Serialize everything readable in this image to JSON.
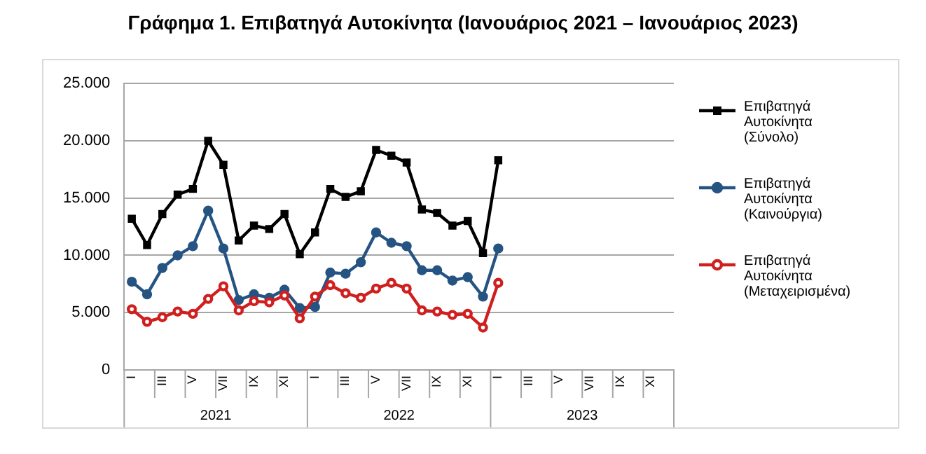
{
  "chart_data": {
    "type": "line",
    "title": "Γράφημα 1. Επιβατηγά Αυτοκίνητα (Ιανουάριος 2021 – Ιανουάριος 2023)",
    "categories": [
      "I",
      null,
      "III",
      null,
      "V",
      null,
      "VII",
      null,
      "IX",
      null,
      "XI",
      null,
      "I",
      null,
      "III",
      null,
      "V",
      null,
      "VII",
      null,
      "IX",
      null,
      "XI",
      null,
      "I",
      null,
      "III",
      null,
      "V",
      null,
      "VII",
      null,
      "IX",
      null,
      "XI",
      null
    ],
    "series": [
      {
        "name": "Επιβατηγά Αυτοκίνητα (Σύνολο)",
        "color": "#000000",
        "marker": "square",
        "values": [
          13200,
          10900,
          13600,
          15300,
          15800,
          20000,
          17900,
          11300,
          12600,
          12300,
          13600,
          10100,
          12000,
          15800,
          15100,
          15600,
          19200,
          18700,
          18100,
          14000,
          13700,
          12600,
          13000,
          10200,
          18300,
          null,
          null,
          null,
          null,
          null,
          null,
          null,
          null,
          null,
          null,
          null
        ]
      },
      {
        "name": "Επιβατηγά Αυτοκίνητα (Καινούργια)",
        "color": "#255483",
        "marker": "circle",
        "values": [
          7700,
          6600,
          8900,
          10000,
          10800,
          13900,
          10600,
          6100,
          6600,
          6300,
          7000,
          5400,
          5500,
          8500,
          8400,
          9400,
          12000,
          11100,
          10800,
          8700,
          8700,
          7800,
          8100,
          6400,
          10600,
          null,
          null,
          null,
          null,
          null,
          null,
          null,
          null,
          null,
          null,
          null
        ]
      },
      {
        "name": "Επιβατηγά Αυτοκίνητα (Μεταχειρισμένα)",
        "color": "#d01f1f",
        "marker": "circle-open",
        "values": [
          5300,
          4200,
          4600,
          5100,
          4900,
          6200,
          7300,
          5200,
          6000,
          5900,
          6500,
          4500,
          6400,
          7400,
          6700,
          6300,
          7100,
          7600,
          7100,
          5200,
          5100,
          4800,
          4900,
          3700,
          7600,
          null,
          null,
          null,
          null,
          null,
          null,
          null,
          null,
          null,
          null,
          null
        ]
      }
    ],
    "ylim": [
      0,
      25000
    ],
    "yticks": [
      0,
      {
        "value": 5000,
        "label": "5.000"
      },
      {
        "value": 10000,
        "label": "10.000"
      },
      {
        "value": 15000,
        "label": "15.000"
      },
      {
        "value": 20000,
        "label": "20.000"
      },
      {
        "value": 25000,
        "label": "25.000"
      }
    ],
    "grid": "y",
    "legend": "right",
    "line_style": "solid",
    "annotations": [
      "2021",
      "2022",
      "2023"
    ]
  }
}
